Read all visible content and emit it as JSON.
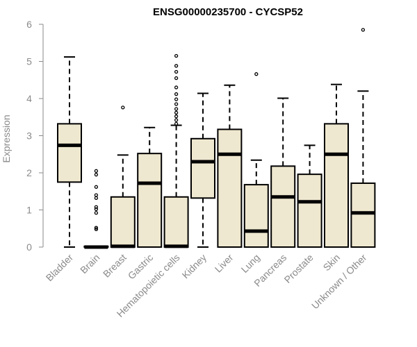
{
  "chart_data": {
    "type": "box",
    "title": "ENSG00000235700 - CYCSP52",
    "xlabel": "",
    "ylabel": "Expression",
    "ylim": [
      0,
      6
    ],
    "yticks": [
      0,
      1,
      2,
      3,
      4,
      5,
      6
    ],
    "grid": false,
    "legend": "none",
    "box_fill": "#efe8d0",
    "box_stroke": "#000000",
    "categories": [
      "Bladder",
      "Brain",
      "Breast",
      "Gastric",
      "Hematopoietic cells",
      "Kidney",
      "Liver",
      "Lung",
      "Pancreas",
      "Prostate",
      "Skin",
      "Unknown / Other"
    ],
    "boxes": [
      {
        "min": 0.0,
        "q1": 1.75,
        "median": 2.74,
        "q3": 3.32,
        "max": 5.12,
        "outliers": []
      },
      {
        "min": 0.0,
        "q1": 0.0,
        "median": 0.0,
        "q3": 0.02,
        "max": 0.02,
        "outliers": [
          0.48,
          0.52,
          0.92,
          1.02,
          1.08,
          1.32,
          1.4,
          1.62,
          1.95,
          2.05
        ]
      },
      {
        "min": 0.0,
        "q1": 0.0,
        "median": 0.02,
        "q3": 1.35,
        "max": 2.48,
        "outliers": [
          3.76
        ]
      },
      {
        "min": 0.0,
        "q1": 0.0,
        "median": 1.72,
        "q3": 2.52,
        "max": 3.22,
        "outliers": []
      },
      {
        "min": 0.0,
        "q1": 0.0,
        "median": 0.02,
        "q3": 1.35,
        "max": 3.28,
        "outliers": [
          3.32,
          3.42,
          3.52,
          3.62,
          3.72,
          3.85,
          3.98,
          4.12,
          4.3,
          4.55,
          4.72,
          4.88,
          5.15
        ]
      },
      {
        "min": 0.0,
        "q1": 1.32,
        "median": 2.3,
        "q3": 2.92,
        "max": 4.14,
        "outliers": []
      },
      {
        "min": 0.0,
        "q1": 0.0,
        "median": 2.5,
        "q3": 3.17,
        "max": 4.36,
        "outliers": []
      },
      {
        "min": 0.0,
        "q1": 0.0,
        "median": 0.43,
        "q3": 1.68,
        "max": 2.34,
        "outliers": [
          4.66
        ]
      },
      {
        "min": 0.0,
        "q1": 0.0,
        "median": 1.35,
        "q3": 2.18,
        "max": 4.01,
        "outliers": []
      },
      {
        "min": 0.0,
        "q1": 0.0,
        "median": 1.22,
        "q3": 1.96,
        "max": 2.74,
        "outliers": []
      },
      {
        "min": 0.0,
        "q1": 0.0,
        "median": 2.5,
        "q3": 3.32,
        "max": 4.38,
        "outliers": []
      },
      {
        "min": 0.0,
        "q1": 0.0,
        "median": 0.92,
        "q3": 1.72,
        "max": 4.2,
        "outliers": [
          5.85
        ]
      }
    ]
  }
}
